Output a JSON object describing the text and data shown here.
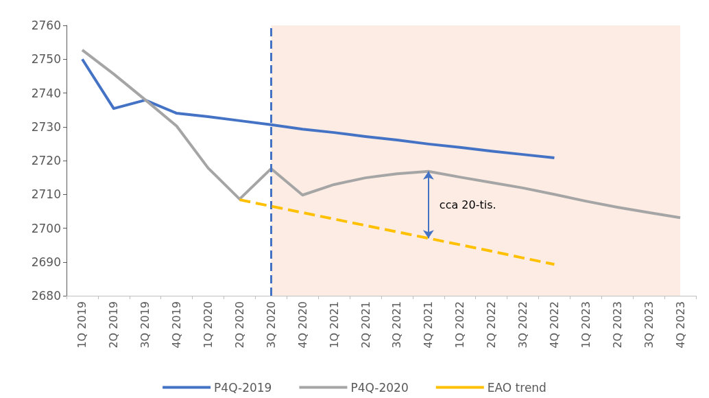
{
  "chart_data": {
    "type": "line",
    "categories": [
      "1Q 2019",
      "2Q 2019",
      "3Q 2019",
      "4Q 2019",
      "1Q 2020",
      "2Q 2020",
      "3Q 2020",
      "4Q 2020",
      "1Q 2021",
      "2Q 2021",
      "3Q 2021",
      "4Q 2021",
      "1Q 2022",
      "2Q 2022",
      "3Q 2022",
      "4Q 2022",
      "1Q 2023",
      "2Q 2023",
      "3Q 2023",
      "4Q 2023"
    ],
    "series": [
      {
        "name": "P4Q-2019",
        "color": "#4472c4",
        "line_style": "solid",
        "values": [
          2750,
          2735.4,
          2737.9,
          2734,
          2733,
          2731.8,
          2730.6,
          2729.3,
          2728.3,
          2727.1,
          2726.1,
          2724.9,
          2723.9,
          2722.8,
          2721.8,
          2720.8,
          null,
          null,
          null,
          null
        ]
      },
      {
        "name": "P4Q-2020",
        "color": "#a5a5a5",
        "line_style": "solid",
        "values": [
          2752.7,
          2745.6,
          2738,
          2730.2,
          2717.8,
          2708.6,
          2717.6,
          2709.8,
          2712.9,
          2714.9,
          2716.1,
          2716.8,
          2715.1,
          2713.5,
          2711.9,
          2710,
          2708,
          2706.2,
          2704.6,
          2703.1
        ]
      },
      {
        "name": "EAO trend",
        "color": "#ffc000",
        "line_style": "dashed",
        "values": [
          null,
          null,
          null,
          null,
          null,
          2708.4,
          2706.5,
          2704.6,
          2702.7,
          2700.8,
          2698.9,
          2697,
          2695.1,
          2693.2,
          2691.2,
          2689.3,
          null,
          null,
          null,
          null
        ]
      }
    ],
    "ylim": [
      2680,
      2760
    ],
    "yticks": [
      2680,
      2690,
      2700,
      2710,
      2720,
      2730,
      2740,
      2750,
      2760
    ],
    "grid": false,
    "legend": "bottom",
    "marker": "none",
    "ref_lines": [
      {
        "axis": "x",
        "value": "3Q 2020",
        "color": "#4472c4",
        "line_style": "dashed"
      }
    ],
    "bands": [
      {
        "axis": "x",
        "from": "3Q 2020",
        "to": "4Q 2023",
        "color": "#fcece4"
      }
    ],
    "annotations": [
      {
        "text": "cca 20-tis.",
        "x": "4Q 2021",
        "y": 2716.8
      }
    ]
  }
}
